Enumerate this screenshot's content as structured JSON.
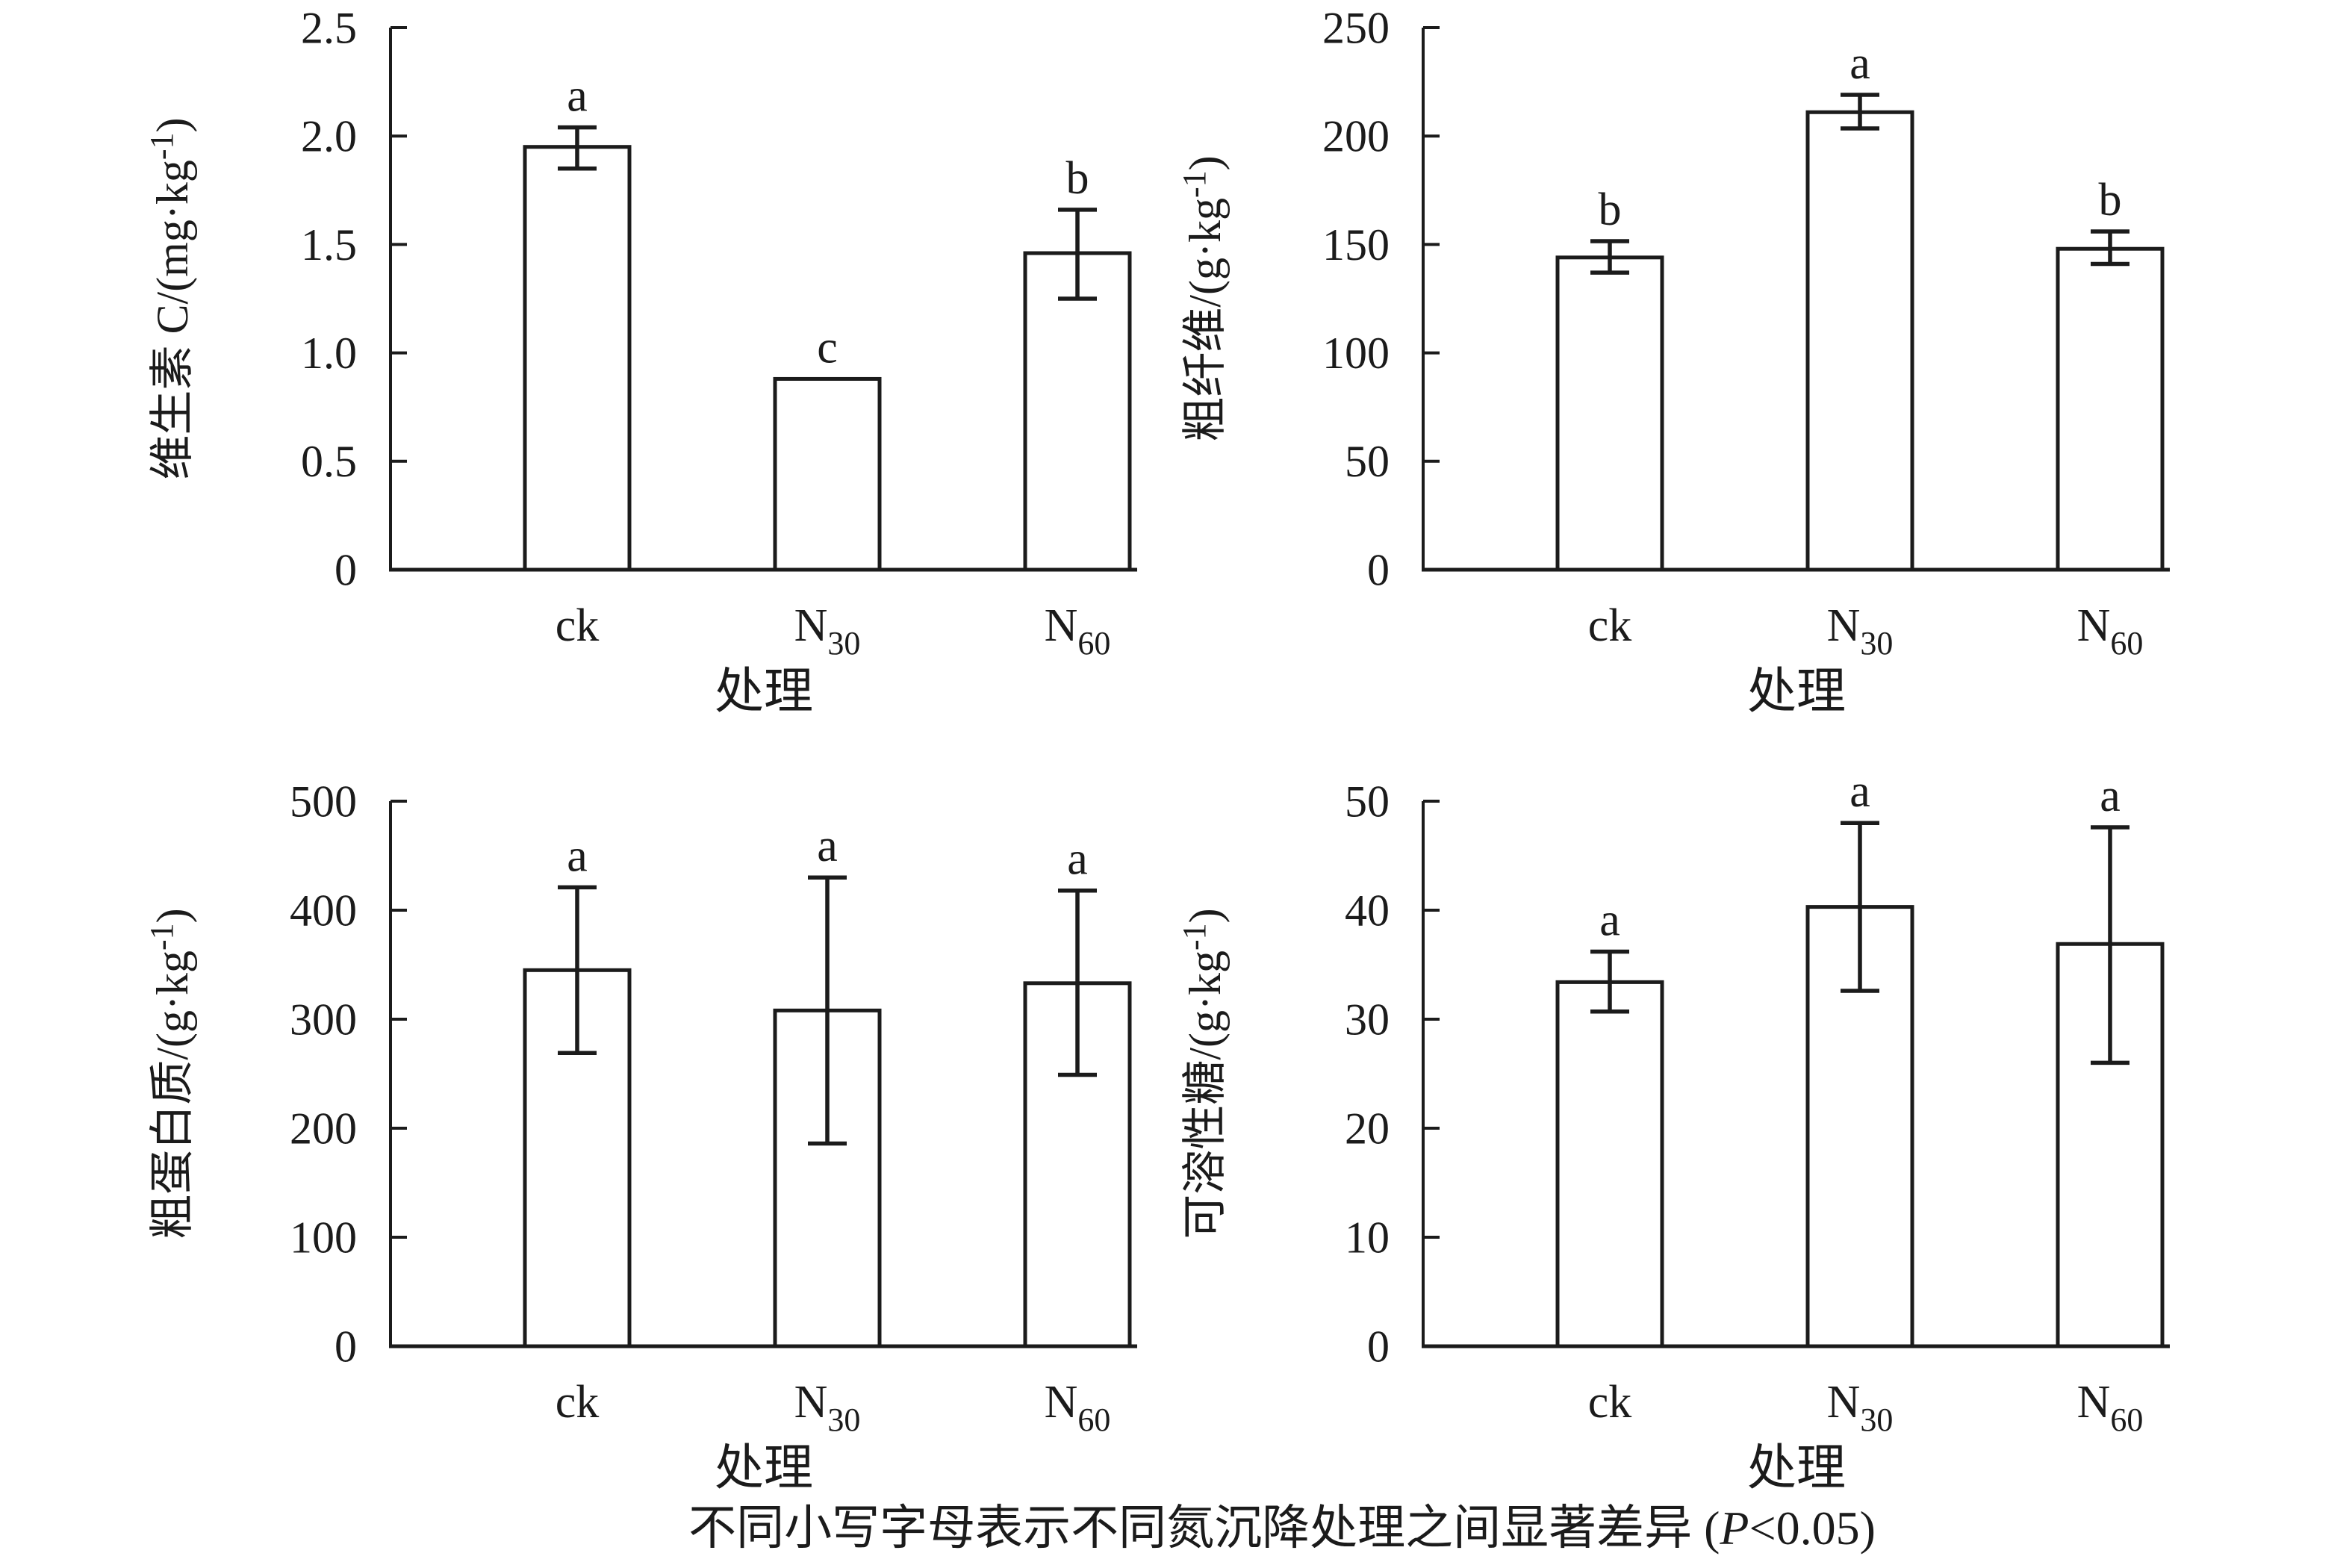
{
  "figure": {
    "background": "#ffffff",
    "ink_color": "#1b1b1b",
    "bar_fill": "#ffffff"
  },
  "shared": {
    "x_axis_title": "处理",
    "categories": [
      "ck",
      "N30",
      "N60"
    ],
    "categories_display": [
      {
        "base": "ck",
        "sub": ""
      },
      {
        "base": "N",
        "sub": "30"
      },
      {
        "base": "N",
        "sub": "60"
      }
    ]
  },
  "caption": {
    "full_text": "不同小写字母表示不同氮沉降处理之间显著差异 (P<0.05)",
    "prefix": "不同小写字母表示不同氮沉降处理之间显著差异 (",
    "p_italic": "P",
    "suffix": "<0.05)"
  },
  "chart_data": [
    {
      "type": "bar",
      "name": "vitamin-c",
      "position": "top-left",
      "ylabel": "维生素 C/(mg·kg-1)",
      "ylabel_parts": {
        "pre": "维生素 C/(mg·kg",
        "sup": "-1",
        "post": ")"
      },
      "xlabel": "处理",
      "categories": [
        "ck",
        "N30",
        "N60"
      ],
      "values": [
        1.95,
        0.88,
        1.46
      ],
      "err_plus": [
        0.09,
        0,
        0.2
      ],
      "err_minus": [
        0.1,
        0,
        0.21
      ],
      "letters": [
        "a",
        "c",
        "b"
      ],
      "ylim": [
        0,
        2.5
      ],
      "ytick_labels": [
        "0",
        "0.5",
        "1.0",
        "1.5",
        "2.0",
        "2.5"
      ],
      "grid": false,
      "legend": false
    },
    {
      "type": "bar",
      "name": "crude-fiber",
      "position": "top-right",
      "ylabel": "粗纤维/(g·kg-1)",
      "ylabel_parts": {
        "pre": "粗纤维/(g·kg",
        "sup": "-1",
        "post": ")"
      },
      "xlabel": "处理",
      "categories": [
        "ck",
        "N30",
        "N60"
      ],
      "values": [
        144,
        211,
        148
      ],
      "err_plus": [
        7.5,
        8,
        8
      ],
      "err_minus": [
        7,
        7.5,
        7
      ],
      "letters": [
        "b",
        "a",
        "b"
      ],
      "ylim": [
        0,
        250
      ],
      "ytick_labels": [
        "0",
        "50",
        "100",
        "150",
        "200",
        "250"
      ],
      "grid": false,
      "legend": false
    },
    {
      "type": "bar",
      "name": "crude-protein",
      "position": "bottom-left",
      "ylabel": "粗蛋白质/(g·kg-1)",
      "ylabel_parts": {
        "pre": "粗蛋白质/(g·kg",
        "sup": "-1",
        "post": ")"
      },
      "xlabel": "处理",
      "categories": [
        "ck",
        "N30",
        "N60"
      ],
      "values": [
        345,
        308,
        333
      ],
      "err_plus": [
        76,
        122,
        85
      ],
      "err_minus": [
        76,
        122,
        84
      ],
      "letters": [
        "a",
        "a",
        "a"
      ],
      "ylim": [
        0,
        500
      ],
      "ytick_labels": [
        "0",
        "100",
        "200",
        "300",
        "400",
        "500"
      ],
      "grid": false,
      "legend": false
    },
    {
      "type": "bar",
      "name": "soluble-sugar",
      "position": "bottom-right",
      "ylabel": "可溶性糖/(g·kg-1)",
      "ylabel_parts": {
        "pre": "可溶性糖/(g·kg",
        "sup": "-1",
        "post": ")"
      },
      "xlabel": "处理",
      "categories": [
        "ck",
        "N30",
        "N60"
      ],
      "values": [
        33.4,
        40.3,
        36.9
      ],
      "err_plus": [
        2.8,
        7.7,
        10.7
      ],
      "err_minus": [
        2.7,
        7.7,
        10.9
      ],
      "letters": [
        "a",
        "a",
        "a"
      ],
      "ylim": [
        0,
        50
      ],
      "ytick_labels": [
        "0",
        "10",
        "20",
        "30",
        "40",
        "50"
      ],
      "grid": false,
      "legend": false
    }
  ]
}
